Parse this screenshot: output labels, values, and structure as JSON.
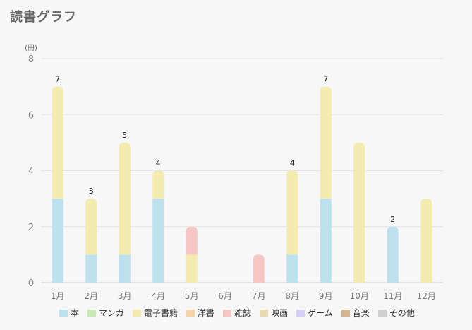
{
  "title": "読書グラフ",
  "chart_data": {
    "type": "bar",
    "stacked": true,
    "ylabel": "(冊)",
    "ylim": [
      0,
      8
    ],
    "yticks": [
      0,
      2,
      4,
      6,
      8
    ],
    "grid": true,
    "legend_position": "bottom",
    "categories": [
      "1月",
      "2月",
      "3月",
      "4月",
      "5月",
      "6月",
      "7月",
      "8月",
      "9月",
      "10月",
      "11月",
      "12月"
    ],
    "totals": [
      "7",
      "3",
      "5",
      "4",
      "",
      "",
      "",
      "4",
      "7",
      "",
      "2",
      ""
    ],
    "series": [
      {
        "name": "本",
        "color": "#bde1ef",
        "values": [
          3,
          1,
          1,
          3,
          0,
          0,
          0,
          1,
          3,
          0,
          2,
          0
        ]
      },
      {
        "name": "マンガ",
        "color": "#c6ecb4",
        "values": [
          0,
          0,
          0,
          0,
          0,
          0,
          0,
          0,
          0,
          0,
          0,
          0
        ]
      },
      {
        "name": "電子書籍",
        "color": "#f4ecaf",
        "values": [
          4,
          2,
          4,
          1,
          1,
          0,
          0,
          3,
          4,
          5,
          0,
          3
        ]
      },
      {
        "name": "洋書",
        "color": "#f6d3a9",
        "values": [
          0,
          0,
          0,
          0,
          0,
          0,
          0,
          0,
          0,
          0,
          0,
          0
        ]
      },
      {
        "name": "雑誌",
        "color": "#f5c6c4",
        "values": [
          0,
          0,
          0,
          0,
          1,
          0,
          1,
          0,
          0,
          0,
          0,
          0
        ]
      },
      {
        "name": "映画",
        "color": "#e8dab3",
        "values": [
          0,
          0,
          0,
          0,
          0,
          0,
          0,
          0,
          0,
          0,
          0,
          0
        ]
      },
      {
        "name": "ゲーム",
        "color": "#d5d1f4",
        "values": [
          0,
          0,
          0,
          0,
          0,
          0,
          0,
          0,
          0,
          0,
          0,
          0
        ]
      },
      {
        "name": "音楽",
        "color": "#d5b591",
        "values": [
          0,
          0,
          0,
          0,
          0,
          0,
          0,
          0,
          0,
          0,
          0,
          0
        ]
      },
      {
        "name": "その他",
        "color": "#cfcfd3",
        "values": [
          0,
          0,
          0,
          0,
          0,
          0,
          0,
          0,
          0,
          0,
          0,
          0
        ]
      }
    ]
  }
}
